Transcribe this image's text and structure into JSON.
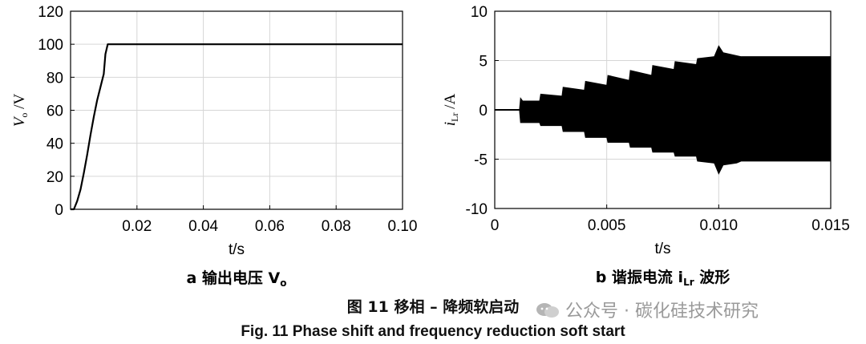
{
  "chart_data": [
    {
      "type": "line",
      "subcaption": "a  输出电压 V",
      "subcaption_sub": "o",
      "xlabel": "t/s",
      "ylabel_main": "V",
      "ylabel_sub": "o",
      "ylabel_unit": " /V",
      "xlim": [
        0.0,
        0.1
      ],
      "ylim": [
        0,
        120
      ],
      "xticks": [
        0.02,
        0.04,
        0.06,
        0.08,
        0.1
      ],
      "xtick_labels": [
        "0.02",
        "0.04",
        "0.06",
        "0.08",
        "0.10"
      ],
      "yticks": [
        0,
        20,
        40,
        60,
        80,
        100,
        120
      ],
      "ytick_labels": [
        "0",
        "20",
        "40",
        "60",
        "80",
        "100",
        "120"
      ],
      "grid": true,
      "series": [
        {
          "x": [
            0.0,
            0.001,
            0.002,
            0.003,
            0.004,
            0.005,
            0.006,
            0.007,
            0.008,
            0.009,
            0.01,
            0.0105,
            0.0112,
            0.02,
            0.04,
            0.06,
            0.08,
            0.1
          ],
          "y": [
            0,
            0,
            5,
            12,
            22,
            33,
            45,
            56,
            66,
            74,
            82,
            94,
            100,
            100,
            100,
            100,
            100,
            100
          ]
        }
      ]
    },
    {
      "type": "area",
      "subcaption_pre": "b  谐振电流 i",
      "subcaption_sub": "Lr",
      "subcaption_post": " 波形",
      "xlabel": "t/s",
      "ylabel_main": "i",
      "ylabel_sub": "Lr",
      "ylabel_unit": " /A",
      "xlim": [
        0,
        0.015
      ],
      "ylim": [
        -10,
        10
      ],
      "xticks": [
        0,
        0.005,
        0.01,
        0.015
      ],
      "xtick_labels": [
        "0",
        "0.005",
        "0.010",
        "0.015"
      ],
      "yticks": [
        -10,
        -5,
        0,
        5,
        10
      ],
      "ytick_labels": [
        "-10",
        "-5",
        "0",
        "5",
        "10"
      ],
      "grid": true,
      "envelope": {
        "t": [
          0.0,
          0.0011,
          0.00115,
          0.00125,
          0.002,
          0.00205,
          0.003,
          0.00305,
          0.004,
          0.00405,
          0.005,
          0.00505,
          0.006,
          0.00605,
          0.007,
          0.00705,
          0.008,
          0.00805,
          0.009,
          0.00905,
          0.0098,
          0.01,
          0.0102,
          0.0108,
          0.011,
          0.015
        ],
        "upper": [
          0,
          0,
          1.2,
          0.9,
          0.9,
          1.6,
          1.4,
          2.3,
          2.0,
          2.9,
          2.5,
          3.5,
          3.0,
          4.0,
          3.5,
          4.5,
          4.1,
          4.9,
          4.6,
          5.2,
          5.4,
          6.5,
          5.8,
          5.5,
          5.4,
          5.4
        ],
        "lower": [
          0,
          0,
          -1.3,
          -1.3,
          -1.3,
          -1.6,
          -1.6,
          -2.2,
          -2.2,
          -2.8,
          -2.8,
          -3.3,
          -3.3,
          -3.8,
          -3.8,
          -4.3,
          -4.3,
          -4.7,
          -4.7,
          -5.2,
          -5.4,
          -6.5,
          -5.6,
          -5.4,
          -5.2,
          -5.2
        ]
      }
    }
  ],
  "caption_cn": "图 11  移相 – 降频软启动",
  "caption_en": "Fig. 11  Phase shift and frequency reduction soft start",
  "watermark": "公众号 · 碳化硅技术研究"
}
